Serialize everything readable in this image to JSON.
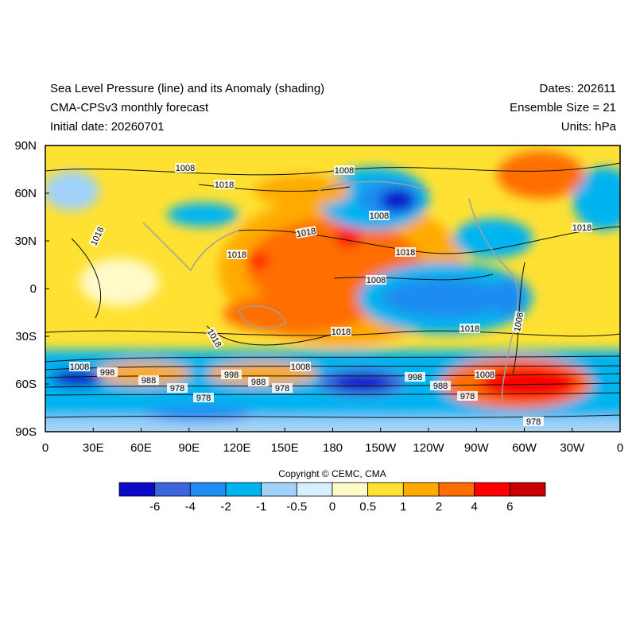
{
  "header": {
    "left": [
      "Sea Level Pressure (line) and its Anomaly (shading)",
      "CMA-CPSv3 monthly forecast",
      "Initial date: 20260701"
    ],
    "right": [
      "Dates: 202611",
      "Ensemble Size = 21",
      "Units: hPa"
    ]
  },
  "map": {
    "xticks": [
      "0",
      "30E",
      "60E",
      "90E",
      "120E",
      "150E",
      "180",
      "150W",
      "120W",
      "90W",
      "60W",
      "30W",
      "0"
    ],
    "yticks": [
      "90N",
      "60N",
      "30N",
      "0",
      "30S",
      "60S",
      "90S"
    ],
    "contour_labels": [
      "1008",
      "1018",
      "1018",
      "1008",
      "1008",
      "1018",
      "1018",
      "1018",
      "1008",
      "1018",
      "1018",
      "1018",
      "1018",
      "1008",
      "1008",
      "998",
      "988",
      "978",
      "998",
      "988",
      "978",
      "1008",
      "998",
      "988",
      "1008",
      "978",
      "978",
      "978"
    ]
  },
  "copyright": "Copyright © CEMC, CMA",
  "colorbar": {
    "labels": [
      "-6",
      "-4",
      "-2",
      "-1",
      "-0.5",
      "0",
      "0.5",
      "1",
      "2",
      "4",
      "6"
    ],
    "colors": [
      "#0a0ac8",
      "#3c64dc",
      "#1e8cf0",
      "#00b4f0",
      "#a0d2fa",
      "#d7f0ff",
      "#fffac8",
      "#ffe132",
      "#ffaa00",
      "#ff6e00",
      "#ff0000",
      "#c80000"
    ]
  }
}
